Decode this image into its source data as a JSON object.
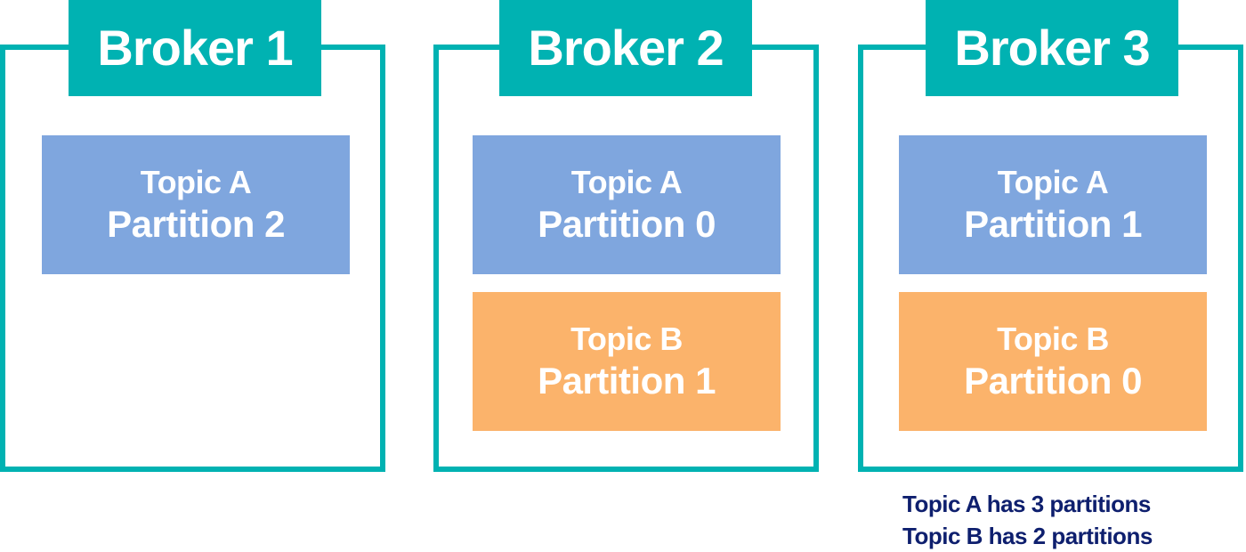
{
  "brokers": [
    {
      "title": "Broker 1",
      "partitions": [
        {
          "topic": "Topic A",
          "partition": "Partition 2",
          "color": "#7FA6DE"
        }
      ]
    },
    {
      "title": "Broker 2",
      "partitions": [
        {
          "topic": "Topic A",
          "partition": "Partition 0",
          "color": "#7FA6DE"
        },
        {
          "topic": "Topic B",
          "partition": "Partition 1",
          "color": "#FBB36B"
        }
      ]
    },
    {
      "title": "Broker 3",
      "partitions": [
        {
          "topic": "Topic A",
          "partition": "Partition 1",
          "color": "#7FA6DE"
        },
        {
          "topic": "Topic B",
          "partition": "Partition 0",
          "color": "#FBB36B"
        }
      ]
    }
  ],
  "legend": {
    "line1": "Topic A has 3 partitions",
    "line2": "Topic B has 2 partitions"
  },
  "colors": {
    "broker_border": "#00B2B2",
    "topic_a": "#7FA6DE",
    "topic_b": "#FBB36B",
    "legend_text": "#0E1F6E"
  }
}
